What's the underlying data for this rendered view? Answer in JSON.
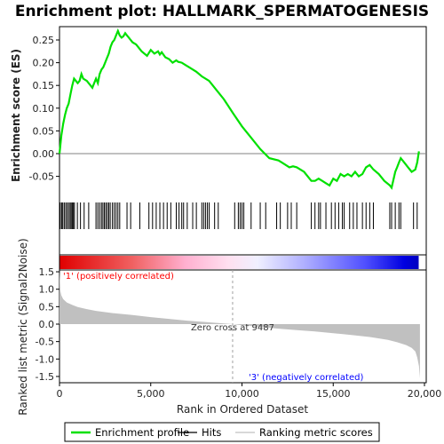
{
  "chart_data": {
    "type": "line",
    "title": "Enrichment plot: HALLMARK_SPERMATOGENESIS",
    "xlabel": "Rank in Ordered Dataset",
    "top_panel": {
      "ylabel": "Enrichment score (ES)",
      "ylim": [
        -0.09,
        0.29
      ],
      "yticks": [
        "0.25",
        "0.20",
        "0.15",
        "0.10",
        "0.05",
        "0.00",
        "-0.05"
      ],
      "ytick_values": [
        0.25,
        0.2,
        0.15,
        0.1,
        0.05,
        0.0,
        -0.05
      ],
      "series": [
        {
          "name": "Enrichment profile",
          "color": "#00e000",
          "x": [
            0,
            100,
            200,
            300,
            400,
            500,
            600,
            700,
            800,
            1000,
            1100,
            1200,
            1300,
            1500,
            1800,
            2000,
            2100,
            2200,
            2300,
            2400,
            2500,
            2600,
            2700,
            2800,
            2900,
            3000,
            3100,
            3200,
            3300,
            3400,
            3500,
            3600,
            3700,
            3800,
            3900,
            4000,
            4200,
            4500,
            4800,
            5000,
            5200,
            5400,
            5500,
            5600,
            5800,
            6000,
            6200,
            6400,
            6500,
            6700,
            6900,
            7100,
            7500,
            7800,
            8200,
            8600,
            9000,
            9487,
            10000,
            10500,
            11000,
            11500,
            12000,
            12200,
            12400,
            12600,
            12800,
            13000,
            13400,
            13800,
            14000,
            14200,
            14400,
            14600,
            14800,
            15000,
            15200,
            15400,
            15600,
            15800,
            16000,
            16200,
            16400,
            16600,
            16800,
            17000,
            17200,
            17500,
            17800,
            18100,
            18200,
            18400,
            18500,
            18600,
            18700,
            18900,
            19100,
            19300,
            19500,
            19600,
            19700
          ],
          "values": [
            0.0,
            0.04,
            0.065,
            0.085,
            0.1,
            0.11,
            0.13,
            0.15,
            0.165,
            0.155,
            0.16,
            0.175,
            0.165,
            0.16,
            0.145,
            0.165,
            0.155,
            0.175,
            0.185,
            0.19,
            0.2,
            0.21,
            0.22,
            0.235,
            0.245,
            0.25,
            0.26,
            0.27,
            0.26,
            0.255,
            0.258,
            0.265,
            0.26,
            0.255,
            0.25,
            0.245,
            0.24,
            0.225,
            0.215,
            0.228,
            0.22,
            0.225,
            0.218,
            0.223,
            0.212,
            0.208,
            0.2,
            0.205,
            0.202,
            0.2,
            0.195,
            0.19,
            0.18,
            0.17,
            0.16,
            0.14,
            0.12,
            0.09,
            0.06,
            0.035,
            0.01,
            -0.01,
            -0.015,
            -0.02,
            -0.025,
            -0.03,
            -0.028,
            -0.03,
            -0.04,
            -0.06,
            -0.06,
            -0.055,
            -0.06,
            -0.065,
            -0.07,
            -0.055,
            -0.06,
            -0.045,
            -0.05,
            -0.045,
            -0.05,
            -0.04,
            -0.05,
            -0.045,
            -0.03,
            -0.025,
            -0.035,
            -0.045,
            -0.06,
            -0.07,
            -0.075,
            -0.04,
            -0.03,
            -0.02,
            -0.01,
            -0.02,
            -0.03,
            -0.04,
            -0.035,
            -0.02,
            0.005
          ]
        }
      ],
      "hits": [
        40,
        120,
        180,
        260,
        340,
        420,
        500,
        580,
        640,
        700,
        760,
        820,
        980,
        1150,
        1350,
        1600,
        2000,
        2100,
        2200,
        2300,
        2380,
        2460,
        2540,
        2620,
        2700,
        2780,
        2900,
        3000,
        3100,
        3200,
        3300,
        3700,
        3900,
        4400,
        4900,
        5100,
        5300,
        5500,
        5700,
        5900,
        6100,
        6400,
        6550,
        6700,
        6800,
        7000,
        7300,
        7500,
        7800,
        7900,
        8000,
        8100,
        8200,
        8500,
        8700,
        9600,
        9800,
        9900,
        10000,
        10100,
        10500,
        11000,
        11300,
        11900,
        12100,
        12500,
        12700,
        13000,
        13800,
        14000,
        14200,
        14300,
        14600,
        14900,
        15100,
        15300,
        15500,
        15600,
        15900,
        16100,
        16300,
        16600,
        16800,
        17000,
        17200,
        18100,
        18200,
        18400,
        18600,
        18700,
        19400,
        19600
      ]
    },
    "middle_panel": {
      "labels": [
        "'1' (positively correlated)",
        "'3' (negatively correlated)"
      ],
      "label_colors": [
        "#ff0000",
        "#0000ff"
      ]
    },
    "bottom_panel": {
      "ylabel": "Ranked list metric (Signal2Noise)",
      "ylim": [
        -1.65,
        1.6
      ],
      "yticks": [
        "1.5",
        "1.0",
        "0.5",
        "0.0",
        "-0.5",
        "-1.0",
        "-1.5"
      ],
      "ytick_values": [
        1.5,
        1.0,
        0.5,
        0.0,
        -0.5,
        -1.0,
        -1.5
      ],
      "zero_cross_label": "Zero cross at 9487",
      "zero_cross": 9487,
      "metric_x": [
        0,
        50,
        100,
        200,
        400,
        700,
        1000,
        1500,
        2000,
        3000,
        4000,
        5000,
        6000,
        7000,
        8000,
        9000,
        9487,
        10000,
        11000,
        12000,
        13000,
        14000,
        15000,
        16000,
        17000,
        18000,
        18500,
        19000,
        19300,
        19500,
        19600,
        19700,
        19750
      ],
      "metric_values": [
        1.55,
        0.95,
        0.82,
        0.72,
        0.62,
        0.55,
        0.49,
        0.43,
        0.38,
        0.31,
        0.26,
        0.2,
        0.15,
        0.1,
        0.06,
        0.02,
        0.0,
        -0.03,
        -0.08,
        -0.13,
        -0.17,
        -0.21,
        -0.26,
        -0.31,
        -0.37,
        -0.45,
        -0.52,
        -0.6,
        -0.68,
        -0.78,
        -0.95,
        -1.2,
        -1.55
      ]
    },
    "xlim": [
      0,
      20000
    ],
    "xticks": [
      "0",
      "5,000",
      "10,000",
      "15,000",
      "20,000"
    ],
    "xtick_values": [
      0,
      5000,
      10000,
      15000,
      20000
    ],
    "legend": {
      "placement": "bottom",
      "items": [
        {
          "label": "Enrichment profile",
          "color": "#00e000",
          "style": "line"
        },
        {
          "label": "Hits",
          "color": "#000000",
          "style": "line"
        },
        {
          "label": "Ranking metric scores",
          "color": "#c0c0c0",
          "style": "line"
        }
      ]
    },
    "grid": false
  }
}
